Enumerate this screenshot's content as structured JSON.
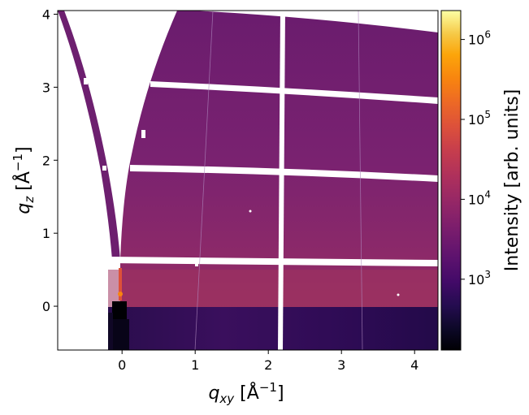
{
  "chart_data": {
    "type": "heatmap",
    "title": "",
    "x_axis": {
      "label_var": "q",
      "label_sub": "xy",
      "label_unit_open": " [Å",
      "label_unit_exp": "−1",
      "label_unit_close": "]",
      "range": [
        -0.88,
        4.32
      ],
      "ticks": [
        0,
        1,
        2,
        3,
        4
      ],
      "tick_labels": [
        "0",
        "1",
        "2",
        "3",
        "4"
      ]
    },
    "y_axis": {
      "label_var": "q",
      "label_sub": "z",
      "label_unit_open": " [Å",
      "label_unit_exp": "−1",
      "label_unit_close": "]",
      "range": [
        -0.6,
        4.05
      ],
      "ticks": [
        0,
        1,
        2,
        3,
        4
      ],
      "tick_labels": [
        "0",
        "1",
        "2",
        "3",
        "4"
      ]
    },
    "colorbar": {
      "label": "Intensity [arb. units]",
      "scale": "log",
      "range": [
        130,
        2300000
      ],
      "colormap": "inferno",
      "ticks": [
        1000,
        10000,
        100000,
        1000000
      ],
      "tick_bases": [
        "10",
        "10",
        "10",
        "10"
      ],
      "tick_exponents": [
        "3",
        "4",
        "5",
        "6"
      ]
    },
    "grid": false
  }
}
